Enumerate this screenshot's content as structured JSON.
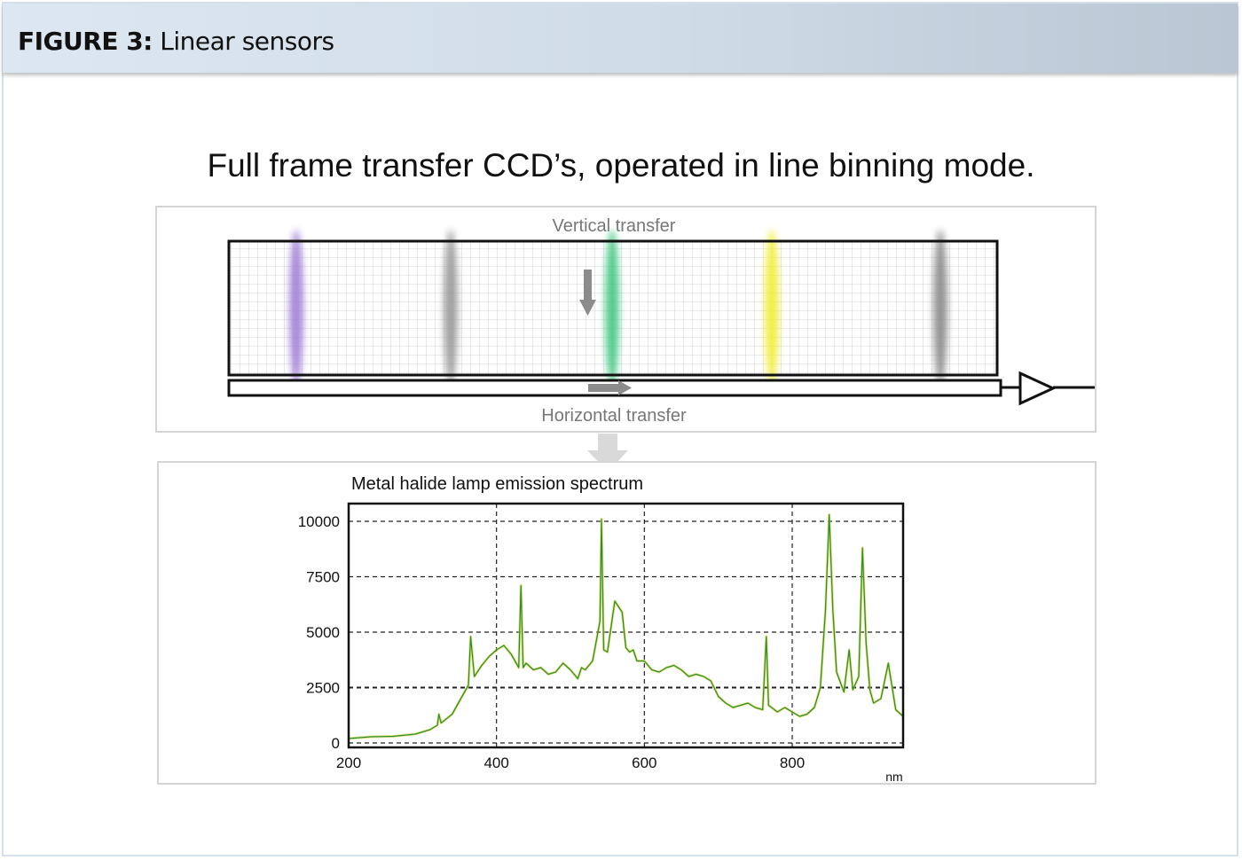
{
  "figure": {
    "label": "FIGURE 3:",
    "title": "Linear sensors"
  },
  "headline": "Full frame transfer CCD’s, operated in line binning mode.",
  "ccd_diagram": {
    "vertical_label": "Vertical transfer",
    "horizontal_label": "Horizontal transfer",
    "stripe_colors": [
      "#a07fd6",
      "#9a9a9a",
      "#45c884",
      "#f1ee3a",
      "#8a8a8a"
    ],
    "arrow_color": "#8c8c8c"
  },
  "chart_data": {
    "type": "line",
    "title": "Metal halide lamp emission spectrum",
    "xlabel": "nm",
    "ylabel": "",
    "xlim": [
      200,
      950
    ],
    "ylim": [
      0,
      10000
    ],
    "xticks": [
      "200",
      "400",
      "600",
      "800"
    ],
    "yticks": [
      "0",
      "2500",
      "5000",
      "7500",
      "10000"
    ],
    "grid": true,
    "series": [
      {
        "color": "#2f8f2f",
        "highlight_color": "#d8d23a",
        "x": [
          200,
          230,
          260,
          290,
          310,
          320,
          322,
          325,
          340,
          355,
          362,
          365,
          370,
          380,
          390,
          400,
          410,
          420,
          430,
          433,
          436,
          440,
          450,
          460,
          470,
          480,
          490,
          500,
          510,
          515,
          520,
          530,
          540,
          542,
          545,
          550,
          560,
          570,
          575,
          580,
          585,
          590,
          600,
          610,
          620,
          630,
          640,
          650,
          660,
          670,
          680,
          690,
          700,
          710,
          720,
          730,
          740,
          750,
          760,
          765,
          768,
          772,
          780,
          790,
          800,
          810,
          820,
          830,
          838,
          845,
          850,
          855,
          860,
          870,
          877,
          882,
          890,
          895,
          900,
          905,
          910,
          920,
          930,
          940,
          950
        ],
        "y": [
          200,
          280,
          300,
          400,
          600,
          800,
          1300,
          900,
          1300,
          2200,
          2600,
          4800,
          3000,
          3500,
          3900,
          4200,
          4400,
          4000,
          3400,
          7100,
          3400,
          3600,
          3300,
          3400,
          3100,
          3200,
          3600,
          3300,
          2900,
          3400,
          3300,
          3700,
          5500,
          10100,
          4200,
          4100,
          6400,
          5900,
          4300,
          4100,
          4200,
          3700,
          3700,
          3300,
          3200,
          3400,
          3500,
          3300,
          3000,
          3100,
          3000,
          2800,
          2100,
          1800,
          1600,
          1700,
          1800,
          1600,
          1500,
          4800,
          1700,
          1600,
          1400,
          1600,
          1400,
          1200,
          1300,
          1600,
          2500,
          6000,
          10300,
          6000,
          3200,
          2300,
          4200,
          2400,
          3000,
          8800,
          4500,
          2400,
          1800,
          2000,
          3600,
          1500,
          1200
        ]
      }
    ]
  }
}
